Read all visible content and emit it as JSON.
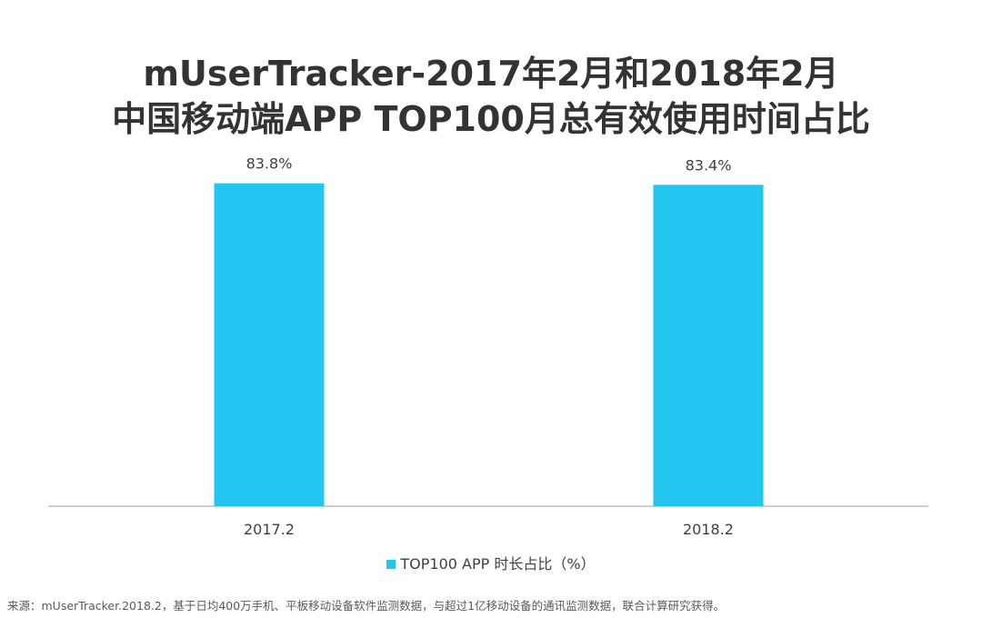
{
  "header": {
    "title_line1": "mUserTracker-2017年2月和2018年2月",
    "title_line2": "中国移动端APP TOP100月总有效使用时间占比"
  },
  "chart_data": {
    "type": "bar",
    "categories": [
      "2017.2",
      "2018.2"
    ],
    "series": [
      {
        "name": "TOP100 APP 时长占比（%）",
        "values": [
          83.8,
          83.4
        ]
      }
    ],
    "data_labels": [
      "83.8%",
      "83.4%"
    ],
    "bar_color": "#21c5f0",
    "axis_color": "#bfbfbf",
    "ylim": [
      0,
      100
    ],
    "grid": false,
    "legend_position": "bottom"
  },
  "legend": {
    "label": "TOP100 APP 时长占比（%）"
  },
  "footer": {
    "source": "来源：mUserTracker.2018.2，基于日均400万手机、平板移动设备软件监测数据，与超过1亿移动设备的通讯监测数据，联合计算研究获得。"
  }
}
